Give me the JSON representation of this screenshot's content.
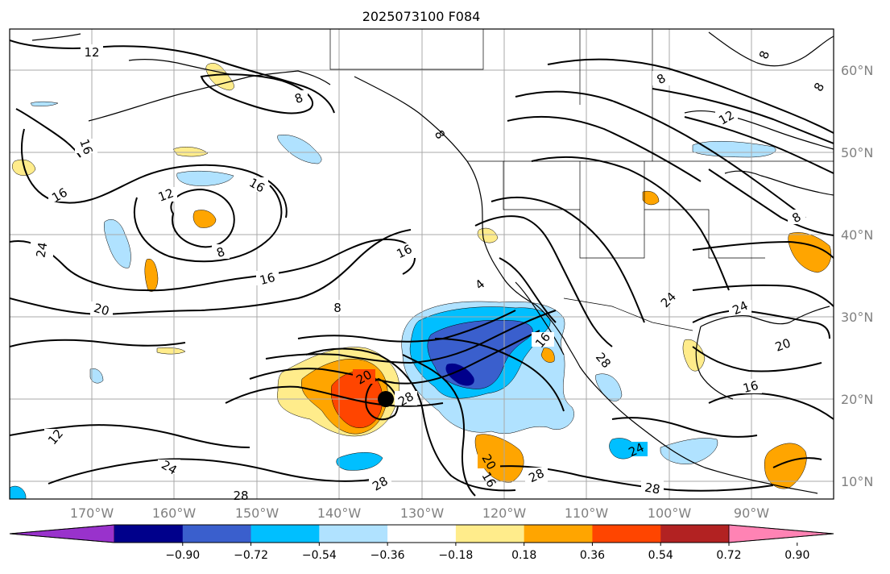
{
  "title": "2025073100 F084",
  "lat_labels": [
    "60°N",
    "50°N",
    "40°N",
    "30°N",
    "20°N",
    "10°N"
  ],
  "lon_labels": [
    "170°W",
    "160°W",
    "150°W",
    "140°W",
    "130°W",
    "120°W",
    "110°W",
    "100°W",
    "90°W"
  ],
  "contour_labels": [
    "12",
    "8",
    "16",
    "16",
    "12",
    "8",
    "16",
    "24",
    "8",
    "16",
    "16",
    "20",
    "8",
    "4",
    "16",
    "20",
    "28",
    "24",
    "28",
    "12",
    "24",
    "28",
    "28",
    "20",
    "16",
    "28",
    "24",
    "28",
    "8",
    "12",
    "8",
    "8",
    "24",
    "20",
    "16",
    "8"
  ],
  "colorbar": {
    "ticks": [
      "−0.90",
      "−0.72",
      "−0.54",
      "−0.36",
      "−0.18",
      "0.18",
      "0.36",
      "0.54",
      "0.72",
      "0.90"
    ],
    "colors": [
      "#9932cc",
      "#00008b",
      "#3a5fcd",
      "#00bfff",
      "#b0e2ff",
      "#ffffff",
      "#ffec8b",
      "#ffa500",
      "#ff4500",
      "#b22222",
      "#ff83b4"
    ]
  },
  "map": {
    "extent_lon": [
      -180,
      -80
    ],
    "extent_lat": [
      7,
      65
    ],
    "gridlines": true,
    "storm_marker": {
      "lon": -134.3,
      "lat": 20.2
    }
  }
}
